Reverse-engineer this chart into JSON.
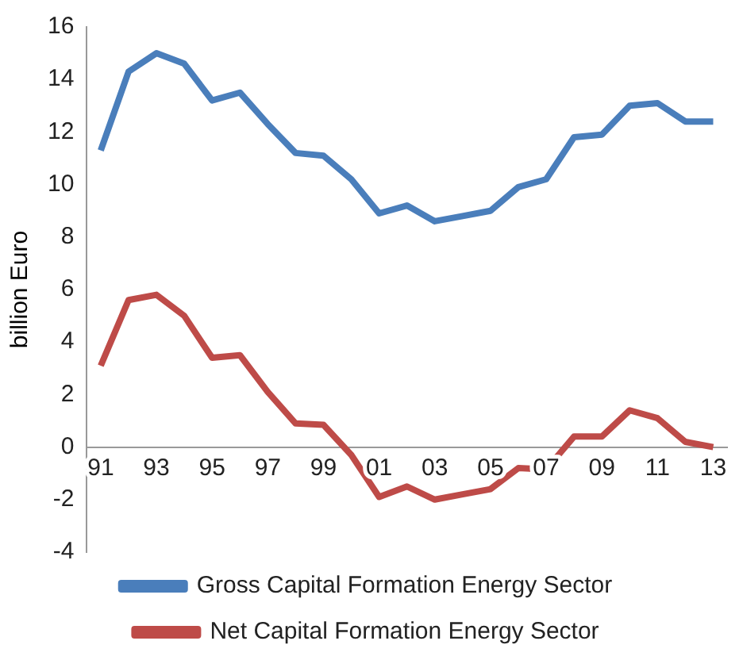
{
  "chart_data": {
    "type": "line",
    "ylabel": "billion Euro",
    "categories": [
      "91",
      null,
      "93",
      null,
      "95",
      null,
      "97",
      null,
      "99",
      null,
      "01",
      null,
      "03",
      null,
      "05",
      null,
      "07",
      null,
      "09",
      null,
      "11",
      null,
      "13"
    ],
    "series": [
      {
        "name": "Gross Capital Formation Energy Sector",
        "color": "#4a7ebb",
        "values": [
          11.3,
          14.3,
          15.0,
          14.6,
          13.2,
          13.5,
          12.3,
          11.2,
          11.1,
          10.2,
          8.9,
          9.2,
          8.6,
          8.8,
          9.0,
          9.9,
          10.2,
          11.8,
          11.9,
          13.0,
          13.1,
          12.4,
          12.4
        ]
      },
      {
        "name": "Net Capital Formation Energy Sector",
        "color": "#be4b48",
        "values": [
          3.1,
          5.6,
          5.8,
          5.0,
          3.4,
          3.5,
          2.1,
          0.9,
          0.85,
          -0.3,
          -1.9,
          -1.5,
          -2.0,
          -1.8,
          -1.6,
          -0.8,
          -0.85,
          0.4,
          0.4,
          1.4,
          1.1,
          0.2,
          0.0
        ]
      }
    ],
    "ylim": [
      -4,
      16
    ],
    "yticks": [
      -4,
      -2,
      0,
      2,
      4,
      6,
      8,
      10,
      12,
      14,
      16
    ],
    "grid": false,
    "legend": "bottom",
    "marker": "none",
    "line_style": "solid"
  }
}
